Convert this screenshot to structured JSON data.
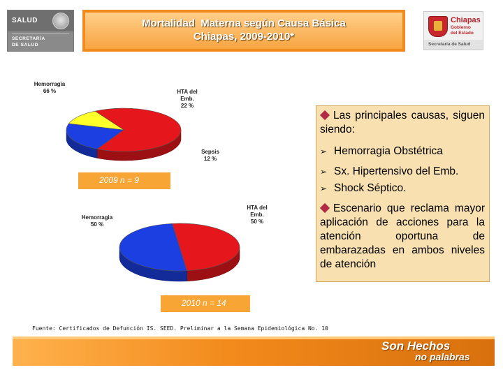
{
  "header": {
    "title": "Mortalidad  Materna según Causa Básica\nChiapas, 2009-2010*",
    "left_logo": {
      "brand": "SALUD",
      "subtitle_line1": "SECRETARÍA",
      "subtitle_line2": "DE SALUD",
      "icon": "mexico-crest-icon"
    },
    "right_logo": {
      "name": "Chiapas",
      "tagline_line1": "Gobierno",
      "tagline_line2": "del Estado",
      "department": "Secretaría de Salud",
      "icon": "chiapas-shield-icon"
    }
  },
  "chart_data": [
    {
      "type": "pie",
      "categories": [
        "Hemorragia",
        "HTA del Emb.",
        "Sepsis"
      ],
      "values": [
        66,
        22,
        12
      ],
      "labels": [
        "Hemorragia\n66 %",
        "HTA del\nEmb.\n22 %",
        "Sepsis\n12 %"
      ],
      "colors": [
        "#e5171c",
        "#1b3fe0",
        "#ffff2a"
      ],
      "caption": "2009  n = 9"
    },
    {
      "type": "pie",
      "categories": [
        "Hemorragia",
        "HTA del Emb."
      ],
      "values": [
        50,
        50
      ],
      "labels": [
        "Hemorragia\n50 %",
        "HTA del\nEmb.\n50 %"
      ],
      "colors": [
        "#e5171c",
        "#1b3fe0"
      ],
      "caption": "2010  n = 14"
    }
  ],
  "textbox": {
    "intro": "Las principales causas, siguen siendo:",
    "items": [
      "Hemorragia Obstétrica",
      "Sx. Hipertensivo del Emb.",
      "Shock Séptico."
    ],
    "note": "Escenario que reclama mayor aplicación  de acciones para la atención oportuna  de embarazadas    en    ambos niveles de atención",
    "bullet_color": "#b32a45",
    "arrow_glyph": "➢"
  },
  "source": "Fuente: Certificados de Defunción  IS. SEED.  Preliminar a la Semana Epidemiológica No. 10",
  "footer": {
    "slogan_line1": "Son Hechos",
    "slogan_line2": "no palabras"
  }
}
